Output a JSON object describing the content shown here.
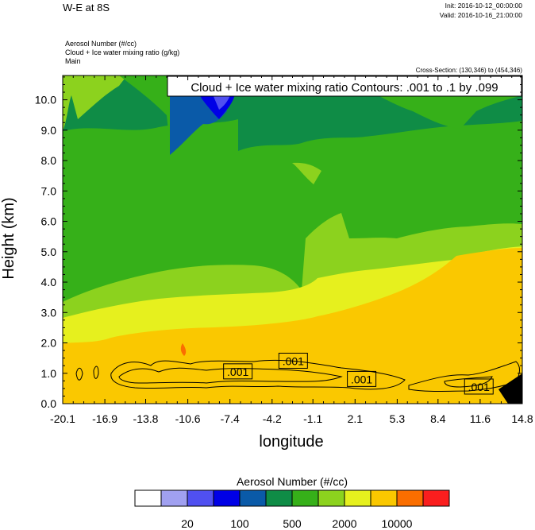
{
  "header": {
    "title": "W-E at 8S",
    "init": "Init: 2016-10-12_00:00:00",
    "valid": "Valid: 2016-10-16_21:00:00",
    "var_lines": [
      "Aerosol Number   (#/cc)",
      "Cloud + Ice water mixing ratio   (g/kg)",
      "Main"
    ],
    "cross_section": "Cross-Section: (130,346) to (454,346)"
  },
  "chart_data": {
    "type": "heatmap",
    "xlabel": "longitude",
    "ylabel": "Height (km)",
    "xlim": [
      -20.1,
      14.8
    ],
    "ylim": [
      0.0,
      10.8
    ],
    "x_ticks": [
      "-20.1",
      "-16.9",
      "-13.8",
      "-10.6",
      "-7.4",
      "-4.2",
      "-1.1",
      "2.1",
      "5.3",
      "8.4",
      "11.6",
      "14.8"
    ],
    "y_ticks": [
      "0.0",
      "1.0",
      "2.0",
      "3.0",
      "4.0",
      "5.0",
      "6.0",
      "7.0",
      "8.0",
      "9.0",
      "10.0"
    ],
    "contour_title": "Cloud + Ice water mixing ratio Contours: .001 to .1 by .099",
    "contour_labels": [
      {
        "text": ".001",
        "lon": -6.8,
        "h": 1.05
      },
      {
        "text": ".001",
        "lon": -2.6,
        "h": 1.4
      },
      {
        "text": ".001",
        "lon": 2.6,
        "h": 0.8
      },
      {
        "text": ".001",
        "lon": 11.5,
        "h": 0.55
      }
    ],
    "colorbar": {
      "title": "Aerosol Number  (#/cc)",
      "colors": [
        "#ffffff",
        "#a0a0f0",
        "#5050f0",
        "#0000e6",
        "#0a5aa8",
        "#0f8c46",
        "#36b019",
        "#8cd21e",
        "#e6f01e",
        "#fac800",
        "#fa6e00",
        "#fa1e1e"
      ],
      "labels": [
        "20",
        "100",
        "500",
        "2000",
        "10000"
      ]
    }
  }
}
